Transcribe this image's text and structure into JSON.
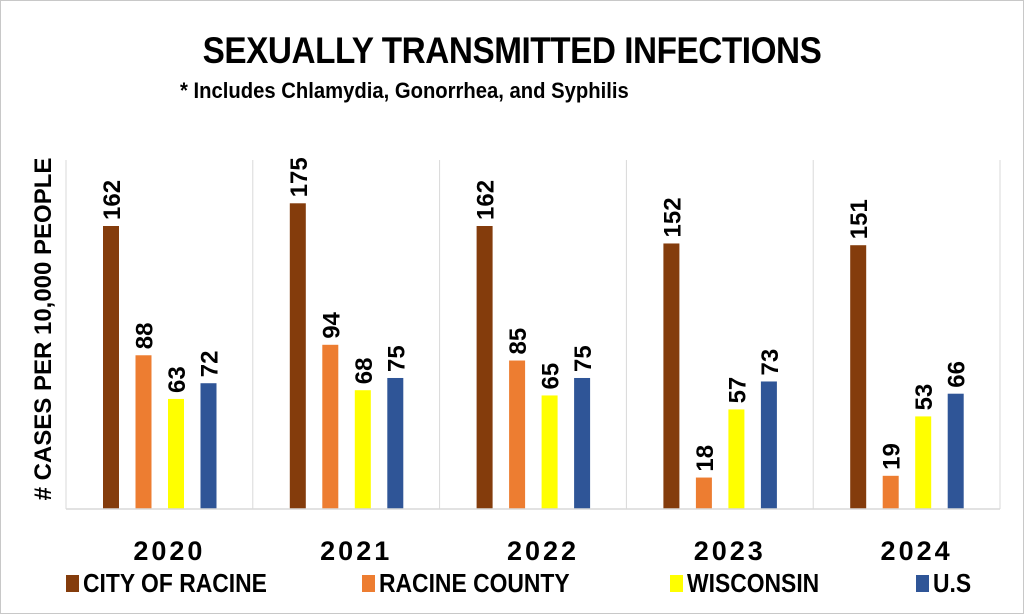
{
  "chart_data": {
    "type": "bar",
    "title": "SEXUALLY TRANSMITTED INFECTIONS",
    "subtitle": "* Includes Chlamydia, Gonorrhea, and Syphilis",
    "xlabel": "",
    "ylabel": "# CASES PER 10,000 PEOPLE",
    "ylim": [
      0,
      200
    ],
    "grid": false,
    "legend_position": "bottom",
    "categories": [
      "2020",
      "2021",
      "2022",
      "2023",
      "2024"
    ],
    "series": [
      {
        "name": "CITY OF RACINE",
        "color": "#843C0C",
        "values": [
          162,
          175,
          162,
          152,
          151
        ]
      },
      {
        "name": "RACINE COUNTY",
        "color": "#ED7D31",
        "values": [
          88,
          94,
          85,
          18,
          19
        ]
      },
      {
        "name": "WISCONSIN",
        "color": "#FFFF00",
        "values": [
          63,
          68,
          65,
          57,
          53
        ]
      },
      {
        "name": "U.S",
        "color": "#2F5597",
        "values": [
          72,
          75,
          75,
          73,
          66
        ]
      }
    ]
  }
}
